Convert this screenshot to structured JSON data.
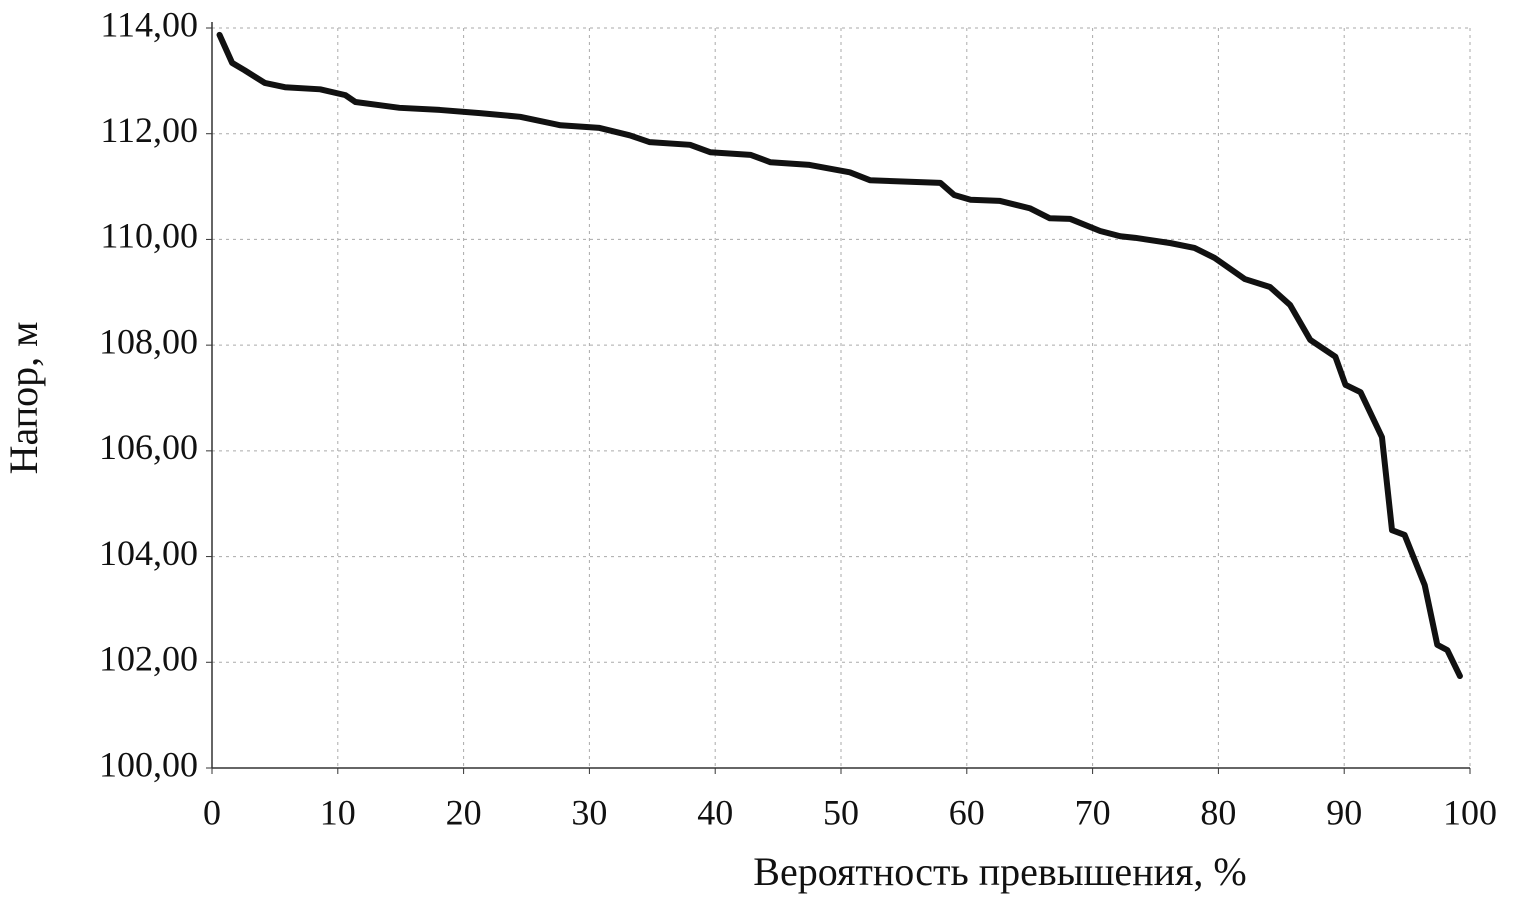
{
  "chart_data": {
    "type": "line",
    "x_label": "Вероятность превышения, %",
    "y_label": "Напор, м",
    "x": [
      0.6,
      1.6,
      2.6,
      4.2,
      5.8,
      8.6,
      10.6,
      11.4,
      14.9,
      18.1,
      21.3,
      24.5,
      27.7,
      30.8,
      33.2,
      34.8,
      38,
      39.6,
      42.8,
      44.4,
      47.5,
      50.7,
      52.3,
      57.9,
      59,
      60.3,
      62.6,
      65,
      66.6,
      68.2,
      70.6,
      72.2,
      73.4,
      76.2,
      78.1,
      79.7,
      82.1,
      84.1,
      85.7,
      87.3,
      89.3,
      90.1,
      91.3,
      93,
      93.8,
      94.8,
      96.4,
      97.4,
      98.2,
      99.2
    ],
    "series": [
      {
        "color": "#111111",
        "values": [
          113.87,
          113.34,
          113.2,
          112.96,
          112.88,
          112.84,
          112.73,
          112.6,
          112.49,
          112.45,
          112.39,
          112.32,
          112.16,
          112.11,
          111.97,
          111.84,
          111.79,
          111.65,
          111.6,
          111.46,
          111.41,
          111.27,
          111.12,
          111.07,
          110.84,
          110.75,
          110.73,
          110.59,
          110.4,
          110.39,
          110.16,
          110.06,
          110.03,
          109.93,
          109.84,
          109.65,
          109.25,
          109.1,
          108.76,
          108.1,
          107.78,
          107.25,
          107.11,
          106.26,
          104.5,
          104.41,
          103.46,
          102.33,
          102.23,
          101.74
        ]
      }
    ],
    "xlim": [
      0,
      100
    ],
    "xticks": [
      0,
      10,
      20,
      30,
      40,
      50,
      60,
      70,
      80,
      90,
      100
    ],
    "ylim": [
      100,
      114
    ],
    "yticks": [
      {
        "value": 100,
        "label": "100,00"
      },
      {
        "value": 102,
        "label": "102,00"
      },
      {
        "value": 104,
        "label": "104,00"
      },
      {
        "value": 106,
        "label": "106,00"
      },
      {
        "value": 108,
        "label": "108,00"
      },
      {
        "value": 110,
        "label": "110,00"
      },
      {
        "value": 112,
        "label": "112,00"
      },
      {
        "value": 114,
        "label": "114,00"
      }
    ],
    "grid": true
  }
}
